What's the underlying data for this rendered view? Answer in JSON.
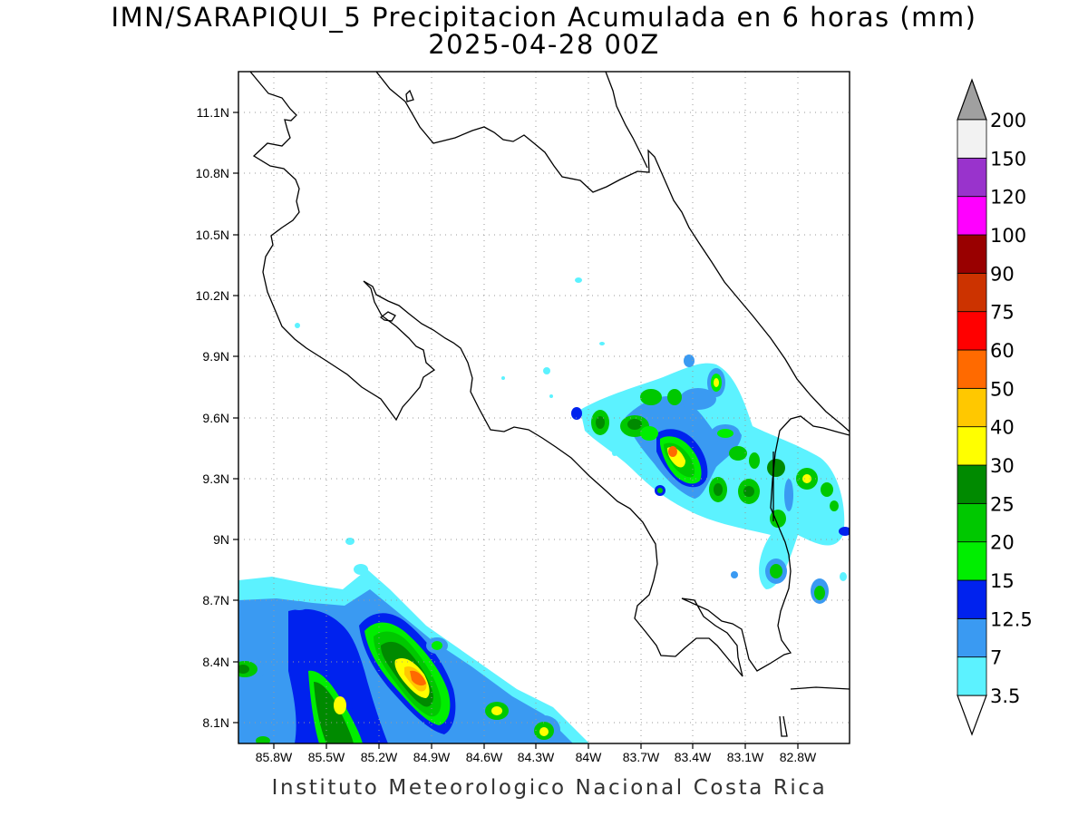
{
  "title": {
    "line1": "IMN/SARAPIQUI_5 Precipitacion Acumulada en 6 horas (mm)",
    "line2": "2025-04-28 00Z"
  },
  "footer": "Instituto Meteorologico Nacional Costa Rica",
  "map": {
    "lat_labels": [
      "11.1N",
      "10.8N",
      "10.5N",
      "10.2N",
      "9.9N",
      "9.6N",
      "9.3N",
      "9N",
      "8.7N",
      "8.4N",
      "8.1N"
    ],
    "lon_labels": [
      "85.8W",
      "85.5W",
      "85.2W",
      "84.9W",
      "84.6W",
      "84.3W",
      "84W",
      "83.7W",
      "83.4W",
      "83.1W",
      "82.8W"
    ],
    "grid": "dotted"
  },
  "colorbar": {
    "labels": [
      "3.5",
      "7",
      "12.5",
      "15",
      "20",
      "25",
      "30",
      "40",
      "50",
      "60",
      "75",
      "90",
      "100",
      "120",
      "150",
      "200"
    ],
    "colors": [
      "#5cf2ff",
      "#3a9af2",
      "#0022ee",
      "#00ee00",
      "#00c800",
      "#008a00",
      "#ffff00",
      "#ffc800",
      "#ff6a00",
      "#ff0000",
      "#cc3300",
      "#990000",
      "#ff00ff",
      "#9933cc",
      "#f2f2f2",
      "#a0a0a0"
    ]
  },
  "palette": {
    "c1": "#5cf2ff",
    "c2": "#3a9af2",
    "c3": "#0022ee",
    "c4": "#00ee00",
    "c5": "#00c800",
    "c6": "#008a00",
    "c7": "#ffff00",
    "c8": "#ffc800",
    "c9": "#ff6a00"
  }
}
